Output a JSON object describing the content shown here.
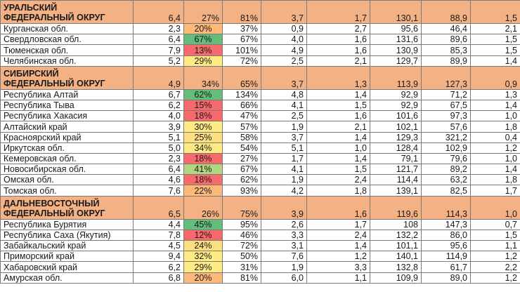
{
  "rows": [
    {
      "kind": "district",
      "name": "УРАЛЬСКИЙ ФЕДЕРАЛЬНЫЙ ОКРУГ",
      "c1": "6,4",
      "c2": "27%",
      "c3": "81%",
      "c4": "3,7",
      "c5": "1,7",
      "c6": "130,1",
      "c7": "88,9",
      "c8": "1,5"
    },
    {
      "kind": "region",
      "name": "Курганская обл.",
      "c1": "2,3",
      "c2": "20%",
      "c3": "37%",
      "c4": "0,9",
      "c5": "2,7",
      "c6": "95,6",
      "c7": "46,4",
      "c8": "2,1",
      "hl": "orange"
    },
    {
      "kind": "region",
      "name": "Свердловская обл.",
      "c1": "6,4",
      "c2": "67%",
      "c3": "67%",
      "c4": "4,0",
      "c5": "1,6",
      "c6": "131,6",
      "c7": "89,6",
      "c8": "1,5",
      "hl": "green"
    },
    {
      "kind": "region",
      "name": "Тюменская обл.",
      "c1": "7,9",
      "c2": "13%",
      "c3": "101%",
      "c4": "4,9",
      "c5": "1,6",
      "c6": "130,9",
      "c7": "85,3",
      "c8": "1,5",
      "hl": "red"
    },
    {
      "kind": "region",
      "name": "Челябинская обл.",
      "c1": "5,2",
      "c2": "29%",
      "c3": "72%",
      "c4": "2,5",
      "c5": "2,1",
      "c6": "129,7",
      "c7": "89,9",
      "c8": "1,4",
      "hl": "yellow"
    },
    {
      "kind": "district",
      "name": "СИБИРСКИЙ ФЕДЕРАЛЬНЫЙ ОКРУГ",
      "c1": "4,9",
      "c2": "34%",
      "c3": "65%",
      "c4": "3,7",
      "c5": "1,3",
      "c6": "113,9",
      "c7": "127,3",
      "c8": "0,9"
    },
    {
      "kind": "region",
      "name": "Республика Алтай",
      "c1": "6,7",
      "c2": "62%",
      "c3": "134%",
      "c4": "4,8",
      "c5": "1,4",
      "c6": "92,9",
      "c7": "71,2",
      "c8": "1,3",
      "hl": "green"
    },
    {
      "kind": "region",
      "name": "Республика Тыва",
      "c1": "6,2",
      "c2": "15%",
      "c3": "66%",
      "c4": "4,1",
      "c5": "1,5",
      "c6": "92,9",
      "c7": "67,5",
      "c8": "1,4",
      "hl": "red"
    },
    {
      "kind": "region",
      "name": "Республика Хакасия",
      "c1": "4,0",
      "c2": "18%",
      "c3": "47%",
      "c4": "2,5",
      "c5": "1,6",
      "c6": "101,6",
      "c7": "97,3",
      "c8": "1,0",
      "hl": "red"
    },
    {
      "kind": "region",
      "name": "Алтайский край",
      "c1": "3,9",
      "c2": "30%",
      "c3": "57%",
      "c4": "1,9",
      "c5": "2,1",
      "c6": "102,1",
      "c7": "57,6",
      "c8": "1,8",
      "hl": "yellow"
    },
    {
      "kind": "region",
      "name": "Красноярский край",
      "c1": "5,1",
      "c2": "25%",
      "c3": "58%",
      "c4": "3,7",
      "c5": "1,4",
      "c6": "129,3",
      "c7": "321,2",
      "c8": "0,4",
      "hl": "lyellow"
    },
    {
      "kind": "region",
      "name": "Иркутская обл.",
      "c1": "5,0",
      "c2": "34%",
      "c3": "54%",
      "c4": "5,1",
      "c5": "1,0",
      "c6": "128,4",
      "c7": "102,9",
      "c8": "1,2",
      "hl": "yellow"
    },
    {
      "kind": "region",
      "name": "Кемеровская обл.",
      "c1": "2,3",
      "c2": "18%",
      "c3": "27%",
      "c4": "1,7",
      "c5": "1,4",
      "c6": "79,1",
      "c7": "79,6",
      "c8": "1,0",
      "hl": "red"
    },
    {
      "kind": "region",
      "name": "Новосибирская обл.",
      "c1": "6,4",
      "c2": "41%",
      "c3": "67%",
      "c4": "4,1",
      "c5": "1,5",
      "c6": "121,7",
      "c7": "89,2",
      "c8": "1,4",
      "hl": "lgreen"
    },
    {
      "kind": "region",
      "name": "Омская обл.",
      "c1": "4,6",
      "c2": "18%",
      "c3": "62%",
      "c4": "1,9",
      "c5": "2,4",
      "c6": "114,4",
      "c7": "63,2",
      "c8": "1,8",
      "hl": "red"
    },
    {
      "kind": "region",
      "name": "Томская обл.",
      "c1": "7,6",
      "c2": "22%",
      "c3": "93%",
      "c4": "4,2",
      "c5": "1,8",
      "c6": "139,1",
      "c7": "82,5",
      "c8": "1,7",
      "hl": "orange"
    },
    {
      "kind": "district",
      "name": "ДАЛЬНЕВОСТОЧНЫЙ ФЕДЕРАЛЬНЫЙ ОКРУГ",
      "c1": "6,5",
      "c2": "26%",
      "c3": "75%",
      "c4": "3,9",
      "c5": "1,6",
      "c6": "119,6",
      "c7": "114,3",
      "c8": "1,0"
    },
    {
      "kind": "region",
      "name": "Республика Бурятия",
      "c1": "4,4",
      "c2": "45%",
      "c3": "95%",
      "c4": "2,6",
      "c5": "1,7",
      "c6": "108",
      "c7": "147,3",
      "c8": "0,7",
      "hl": "green"
    },
    {
      "kind": "region",
      "name": "Республика Саха (Якутия)",
      "c1": "7,8",
      "c2": "12%",
      "c3": "46%",
      "c4": "3,3",
      "c5": "2,4",
      "c6": "132,2",
      "c7": "86,0",
      "c8": "1,5",
      "hl": "red"
    },
    {
      "kind": "region",
      "name": "Забайкальский край",
      "c1": "4,5",
      "c2": "24%",
      "c3": "72%",
      "c4": "3,1",
      "c5": "1,4",
      "c6": "101,1",
      "c7": "95,6",
      "c8": "1,1",
      "hl": "lyellow"
    },
    {
      "kind": "region",
      "name": "Приморский край",
      "c1": "9,4",
      "c2": "32%",
      "c3": "50%",
      "c4": "7,6",
      "c5": "1,2",
      "c6": "140,1",
      "c7": "114,9",
      "c8": "1,2",
      "hl": "yellow"
    },
    {
      "kind": "region",
      "name": "Хабаровский край",
      "c1": "6,2",
      "c2": "29%",
      "c3": "31%",
      "c4": "1,9",
      "c5": "3,3",
      "c6": "132,8",
      "c7": "61,7",
      "c8": "2,2",
      "hl": "yellow"
    },
    {
      "kind": "region",
      "name": "Амурская обл.",
      "c1": "6,8",
      "c2": "20%",
      "c3": "81%",
      "c4": "6,0",
      "c5": "1,1",
      "c6": "109,9",
      "c7": "89,0",
      "c8": "1,2",
      "hl": "orange"
    }
  ]
}
